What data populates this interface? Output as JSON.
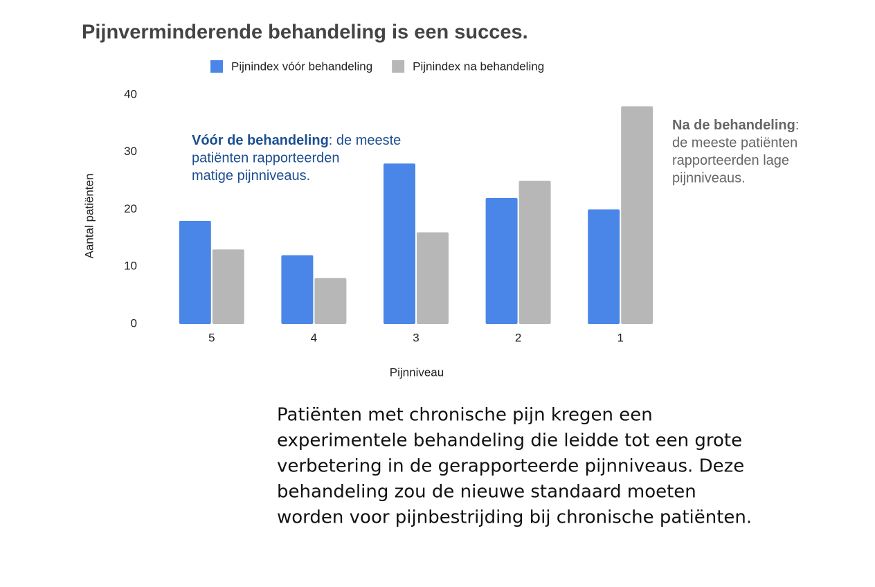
{
  "chart_data": {
    "type": "bar",
    "title": "Pijnverminderende behandeling is een succes.",
    "x_label": "Pijnniveau",
    "y_label": "Aantal patiënten",
    "categories": [
      "5",
      "4",
      "3",
      "2",
      "1"
    ],
    "series": [
      {
        "name": "Pijnindex vóór behandeling",
        "color": "#4a86e8",
        "values": [
          18,
          12,
          28,
          22,
          20
        ]
      },
      {
        "name": "Pijnindex na behandeling",
        "color": "#b7b7b7",
        "values": [
          13,
          8,
          16,
          25,
          38
        ]
      }
    ],
    "ylim": [
      0,
      40
    ],
    "yticks": [
      0,
      10,
      20,
      30,
      40
    ],
    "grid": false,
    "legend": "top",
    "annotations": [
      {
        "bold": "Vóór de behandeling",
        "lines": [
          ": de meeste",
          "patiënten rapporteerden",
          "matige pijnniveaus."
        ],
        "color": "#1c4e8f"
      },
      {
        "bold": "Na de behandeling",
        "lines": [
          ":",
          "de meeste patiënten",
          "rapporteerden lage",
          "pijnniveaus."
        ],
        "color": "#666666"
      }
    ]
  },
  "paragraph": [
    "Patiënten met chronische pijn kregen een",
    "experimentele behandeling die leidde tot een grote",
    "verbetering in de gerapporteerde pijnniveaus. Deze",
    "behandeling zou de nieuwe standaard moeten",
    "worden voor pijnbestrijding bij chronische patiënten."
  ]
}
